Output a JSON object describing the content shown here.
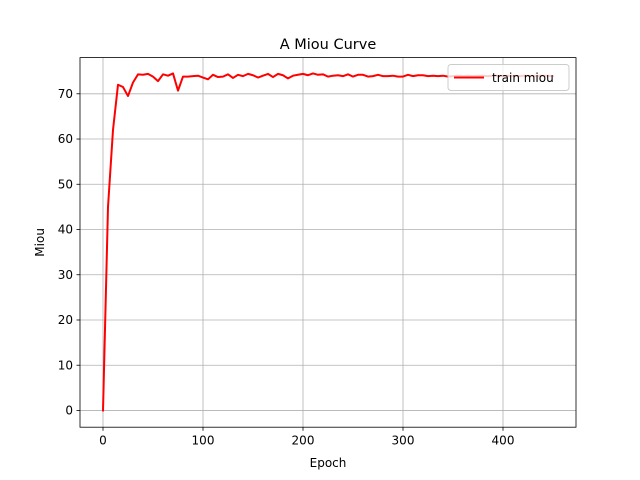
{
  "chart_data": {
    "type": "line",
    "title": "A Miou Curve",
    "xlabel": "Epoch",
    "ylabel": "Miou",
    "xlim": [
      -23,
      473
    ],
    "ylim": [
      -3.7,
      78.0
    ],
    "xticks": [
      0,
      100,
      200,
      300,
      400
    ],
    "yticks": [
      0,
      10,
      20,
      30,
      40,
      50,
      60,
      70
    ],
    "grid": true,
    "legend_position": "top-right",
    "series": [
      {
        "name": "train miou",
        "color": "#ff0000",
        "x": [
          0,
          5,
          10,
          15,
          20,
          25,
          30,
          35,
          40,
          45,
          50,
          55,
          60,
          65,
          70,
          75,
          80,
          85,
          90,
          95,
          100,
          105,
          110,
          115,
          120,
          125,
          130,
          135,
          140,
          145,
          150,
          155,
          160,
          165,
          170,
          175,
          180,
          185,
          190,
          195,
          200,
          205,
          210,
          215,
          220,
          225,
          230,
          235,
          240,
          245,
          250,
          255,
          260,
          265,
          270,
          275,
          280,
          285,
          290,
          295,
          300,
          305,
          310,
          315,
          320,
          325,
          330,
          335,
          340,
          345,
          350,
          355,
          360,
          365,
          370,
          375,
          380,
          385,
          390,
          395,
          400,
          405,
          410,
          415,
          420,
          425,
          430,
          435,
          440,
          445,
          450
        ],
        "y": [
          0,
          45,
          62,
          72,
          71.5,
          69.5,
          72.5,
          74.3,
          74.2,
          74.4,
          73.8,
          72.8,
          74.3,
          74.0,
          74.5,
          70.7,
          73.8,
          73.8,
          73.9,
          74.0,
          73.6,
          73.2,
          74.2,
          73.7,
          73.8,
          74.3,
          73.5,
          74.2,
          73.9,
          74.4,
          74.1,
          73.6,
          74.0,
          74.4,
          73.7,
          74.4,
          74.1,
          73.4,
          74.0,
          74.2,
          74.4,
          74.1,
          74.5,
          74.2,
          74.3,
          73.8,
          74.0,
          74.1,
          73.9,
          74.3,
          73.8,
          74.2,
          74.2,
          73.8,
          73.9,
          74.2,
          73.9,
          73.9,
          74.0,
          73.8,
          73.8,
          74.2,
          73.9,
          74.1,
          74.1,
          73.9,
          74.0,
          73.9,
          74.0,
          73.8,
          73.9,
          74.0,
          73.9,
          74.0,
          73.9,
          74.0,
          74.0,
          73.9,
          74.0,
          74.0,
          73.9,
          74.0,
          74.0,
          73.9,
          74.0,
          74.0,
          73.9,
          74.0,
          74.0,
          74.0,
          73.9
        ]
      }
    ]
  }
}
